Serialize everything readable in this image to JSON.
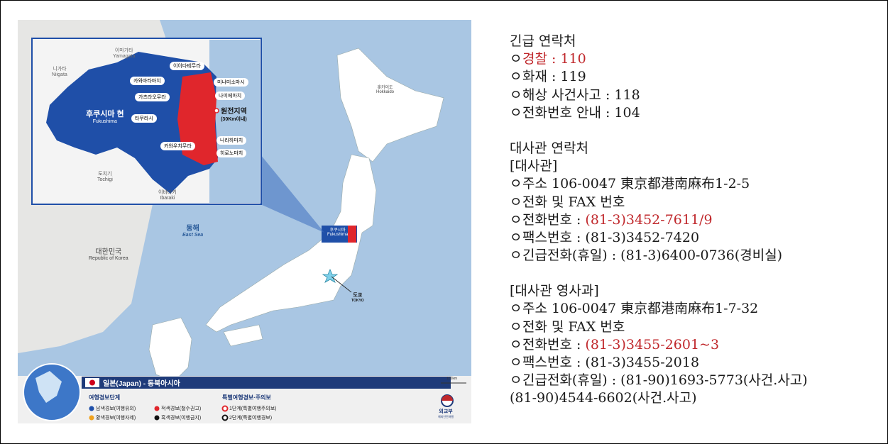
{
  "map": {
    "region_labels": {
      "yamagata": "이마가타",
      "yamagata_en": "Yamagata",
      "niigata": "니가타",
      "niigata_en": "Niigata",
      "fukushima": "후쿠시마 현",
      "fukushima_en": "Fukushima",
      "tochigi": "도치기",
      "tochigi_en": "Tochigi",
      "ibaraki": "이바라키",
      "ibaraki_en": "Ibaraki",
      "east_sea": "동해",
      "east_sea_en": "East Sea",
      "korea": "대한민국",
      "korea_en": "Republic of Korea",
      "hokkaido": "홋카이도",
      "hokkaido_en": "Hokkaido",
      "tokyo": "도쿄",
      "tokyo_en": "TOKYO",
      "fukushima_small": "후쿠시마",
      "fukushima_small_en": "Fukushima"
    },
    "callouts": [
      "이이다테무라",
      "카와마타마치",
      "가츠라오무라",
      "타무라시",
      "카와우치무라",
      "미나미소마시",
      "나미에마치",
      "나라하마치",
      "히로노마치"
    ],
    "plant": {
      "title": "원전지역",
      "sub": "(30Km이내)"
    },
    "scale": "100km",
    "country_title": "일본(Japan) - 동북아시아",
    "legend": {
      "heading": "여행경보단계",
      "special_heading": "특별여행경보·주의보",
      "items": [
        {
          "label": "남색경보(여행유의)",
          "color": "#1f4fa8"
        },
        {
          "label": "적색경보(철수권고)",
          "color": "#e0262c"
        },
        {
          "label": "황색경보(여행자제)",
          "color": "#f0a21e"
        },
        {
          "label": "흑색경보(여행금지)",
          "color": "#111111"
        },
        {
          "label": "1단계(특별여행주의보)",
          "color": "#e0262c"
        },
        {
          "label": "2단계(특별여행경보)",
          "color": "#111111"
        }
      ]
    },
    "ministry": "외교부",
    "ministry_sub": "해외안전여행"
  },
  "contacts": {
    "emergency_title": "긴급 연락처",
    "emergency": [
      {
        "text": "경찰 : 110",
        "highlight": true
      },
      {
        "text": "화재 : 119",
        "highlight": false
      },
      {
        "text": "해상 사건사고 : 118",
        "highlight": false
      },
      {
        "text": "전화번호 안내 : 104",
        "highlight": false
      }
    ],
    "embassy_title": "대사관 연락처",
    "embassy_heading": "[대사관]",
    "embassy": {
      "address": "주소 106-0047 東京都港南麻布1-2-5",
      "phone_fax": "전화 및 FAX 번호",
      "phone_label": "전화번호 : ",
      "phone_value": "(81-3)3452-7611/9",
      "fax": "팩스번호 : (81-3)3452-7420",
      "emergency_phone": "긴급전화(휴일) : (81-3)6400-0736(경비실)"
    },
    "consular_heading": "[대사관 영사과]",
    "consular": {
      "address": "주소 106-0047 東京都港南麻布1-7-32",
      "phone_fax": "전화 및 FAX 번호",
      "phone_label": "전화번호 : ",
      "phone_value": "(81-3)3455-2601~3",
      "fax": "팩스번호 : (81-3)3455-2018",
      "emergency_phone": "긴급전화(휴일) : (81-90)1693-5773(사건.사고)",
      "emergency_phone_2": "(81-90)4544-6602(사건.사고)"
    },
    "bullet": "ㅇ"
  }
}
